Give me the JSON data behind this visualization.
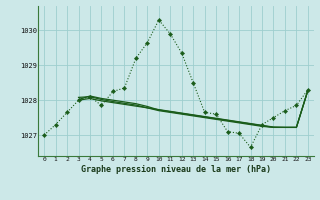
{
  "title": "Graphe pression niveau de la mer (hPa)",
  "bg_color": "#cce8e8",
  "plot_bg": "#cce8e8",
  "line_color": "#1a5c1a",
  "grid_color": "#9ecece",
  "border_color": "#3a7a3a",
  "xlim_min": -0.5,
  "xlim_max": 23.5,
  "ylim_min": 1026.4,
  "ylim_max": 1030.7,
  "yticks": [
    1027,
    1028,
    1029,
    1030
  ],
  "xticks": [
    0,
    1,
    2,
    3,
    4,
    5,
    6,
    7,
    8,
    9,
    10,
    11,
    12,
    13,
    14,
    15,
    16,
    17,
    18,
    19,
    20,
    21,
    22,
    23
  ],
  "x_main": [
    0,
    1,
    2,
    3,
    4,
    5,
    6,
    7,
    8,
    9,
    10,
    11,
    12,
    13,
    14,
    15,
    16,
    17,
    18,
    19,
    20,
    21,
    22,
    23
  ],
  "y_main": [
    1027.0,
    1027.3,
    1027.65,
    1028.0,
    1028.1,
    1027.85,
    1028.25,
    1028.35,
    1029.2,
    1029.65,
    1030.3,
    1029.9,
    1029.35,
    1028.5,
    1027.65,
    1027.6,
    1027.1,
    1027.05,
    1026.65,
    1027.3,
    1027.5,
    1027.7,
    1027.85,
    1028.3
  ],
  "x_line1": [
    3,
    4,
    5,
    6,
    7,
    8,
    9,
    10,
    11,
    12,
    13,
    14,
    15,
    16,
    17,
    18,
    19,
    20,
    21,
    22,
    23
  ],
  "y_line1": [
    1028.0,
    1028.05,
    1027.98,
    1027.93,
    1027.88,
    1027.83,
    1027.78,
    1027.73,
    1027.68,
    1027.63,
    1027.58,
    1027.53,
    1027.48,
    1027.43,
    1027.38,
    1027.33,
    1027.28,
    1027.23,
    1027.22,
    1027.22,
    1028.28
  ],
  "x_line2": [
    3,
    4,
    5,
    6,
    7,
    8,
    9,
    10,
    11,
    12,
    13,
    14,
    15,
    16,
    17,
    18,
    19,
    20,
    21,
    22,
    23
  ],
  "y_line2": [
    1028.08,
    1028.1,
    1028.02,
    1027.96,
    1027.91,
    1027.86,
    1027.78,
    1027.7,
    1027.65,
    1027.6,
    1027.55,
    1027.5,
    1027.45,
    1027.4,
    1027.35,
    1027.3,
    1027.25,
    1027.22,
    1027.22,
    1027.22,
    1028.28
  ],
  "x_line3": [
    3,
    4,
    5,
    6,
    7,
    8,
    9,
    10,
    11,
    12,
    13,
    14,
    15,
    16,
    17,
    18,
    19,
    20,
    21,
    22,
    23
  ],
  "y_line3": [
    1028.02,
    1028.12,
    1028.05,
    1028.0,
    1027.95,
    1027.9,
    1027.82,
    1027.72,
    1027.67,
    1027.62,
    1027.57,
    1027.52,
    1027.47,
    1027.42,
    1027.37,
    1027.32,
    1027.27,
    1027.22,
    1027.22,
    1027.22,
    1028.28
  ]
}
